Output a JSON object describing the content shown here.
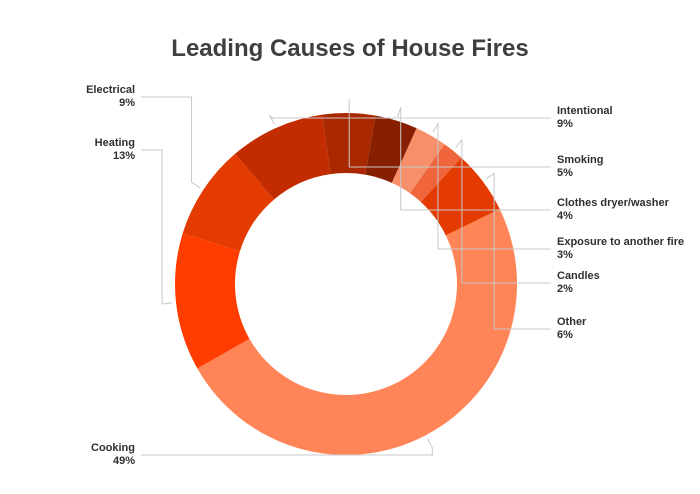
{
  "chart_data": {
    "type": "pie",
    "title": "Leading Causes of House Fires",
    "slices": [
      {
        "label": "Cooking",
        "value": 49,
        "value_label": "49%",
        "color": "#ff8559"
      },
      {
        "label": "Heating",
        "value": 13,
        "value_label": "13%",
        "color": "#ff3d00"
      },
      {
        "label": "Electrical",
        "value": 9,
        "value_label": "9%",
        "color": "#e33b00"
      },
      {
        "label": "Intentional",
        "value": 9,
        "value_label": "9%",
        "color": "#c22c00"
      },
      {
        "label": "Smoking",
        "value": 5,
        "value_label": "5%",
        "color": "#a92800"
      },
      {
        "label": "Clothes dryer/washer",
        "value": 4,
        "value_label": "4%",
        "color": "#862000"
      },
      {
        "label": "Exposure to another fire",
        "value": 3,
        "value_label": "3%",
        "color": "#f88f6b"
      },
      {
        "label": "Candles",
        "value": 2,
        "value_label": "2%",
        "color": "#f0653c"
      },
      {
        "label": "Other",
        "value": 6,
        "value_label": "6%",
        "color": "#e33b00"
      }
    ],
    "legend": "none",
    "data_labels": "outside"
  }
}
